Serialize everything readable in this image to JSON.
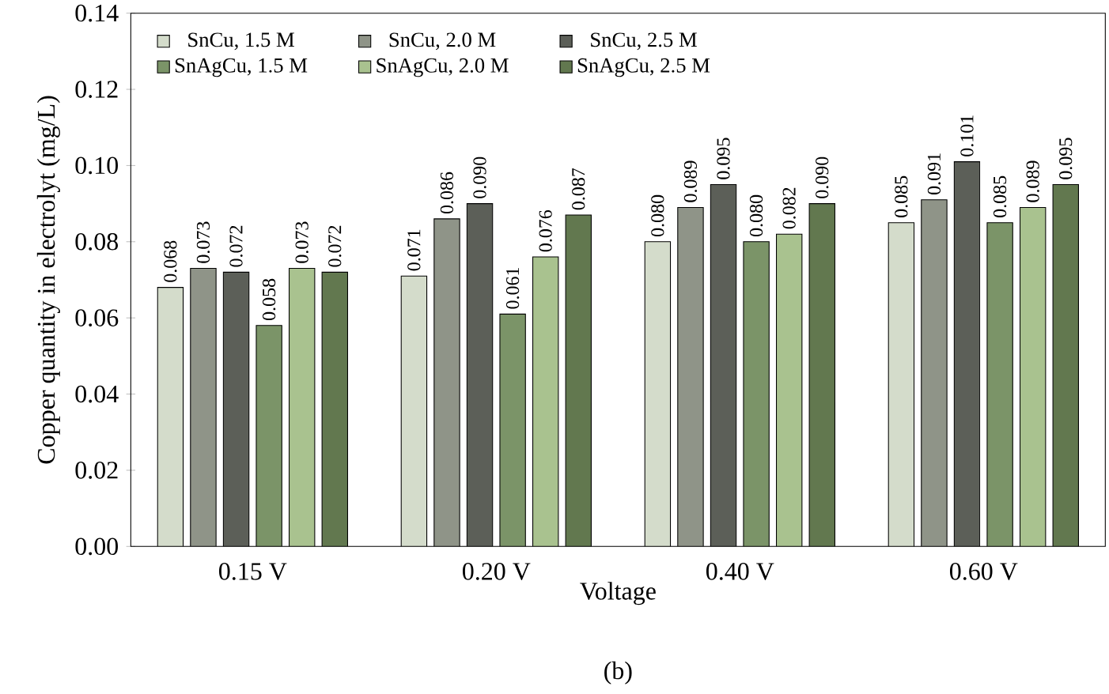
{
  "chart_data": {
    "type": "bar",
    "xlabel": "Voltage",
    "ylabel": "Copper quantity in electrolyt (mg/L)",
    "categories": [
      "0.15 V",
      "0.20 V",
      "0.40 V",
      "0.60 V"
    ],
    "series": [
      {
        "name": "SnCu, 1.5 M",
        "color": "#d4dccb",
        "values": [
          0.068,
          0.071,
          0.08,
          0.085
        ],
        "value_labels": [
          "0.068",
          "0.071",
          "0.080",
          "0.085"
        ]
      },
      {
        "name": "SnCu, 2.0 M",
        "color": "#8f9488",
        "values": [
          0.073,
          0.086,
          0.089,
          0.091
        ],
        "value_labels": [
          "0.073",
          "0.086",
          "0.089",
          "0.091"
        ]
      },
      {
        "name": "SnCu, 2.5 M",
        "color": "#5c5f58",
        "values": [
          0.072,
          0.09,
          0.095,
          0.101
        ],
        "value_labels": [
          "0.072",
          "0.090",
          "0.095",
          "0.101"
        ]
      },
      {
        "name": "SnAgCu, 1.5 M",
        "color": "#7b9468",
        "values": [
          0.058,
          0.061,
          0.08,
          0.085
        ],
        "value_labels": [
          "0.058",
          "0.061",
          "0.080",
          "0.085"
        ]
      },
      {
        "name": "SnAgCu, 2.0 M",
        "color": "#a9c28f",
        "values": [
          0.073,
          0.076,
          0.082,
          0.089
        ],
        "value_labels": [
          "0.073",
          "0.076",
          "0.082",
          "0.089"
        ]
      },
      {
        "name": "SnAgCu, 2.5 M",
        "color": "#62784f",
        "values": [
          0.072,
          0.087,
          0.09,
          0.095
        ],
        "value_labels": [
          "0.072",
          "0.087",
          "0.090",
          "0.095"
        ]
      }
    ],
    "ylim": [
      0,
      0.14
    ],
    "yticks": [
      {
        "value": 0,
        "label": "0.00"
      },
      {
        "value": 0.02,
        "label": "0.02"
      },
      {
        "value": 0.04,
        "label": "0.04"
      },
      {
        "value": 0.06,
        "label": "0.06"
      },
      {
        "value": 0.08,
        "label": "0.08"
      },
      {
        "value": 0.1,
        "label": "0.10"
      },
      {
        "value": 0.12,
        "label": "0.12"
      },
      {
        "value": 0.14,
        "label": "0.14"
      }
    ],
    "grid": false,
    "legend": "top left",
    "annotations": [
      "(b)"
    ]
  }
}
